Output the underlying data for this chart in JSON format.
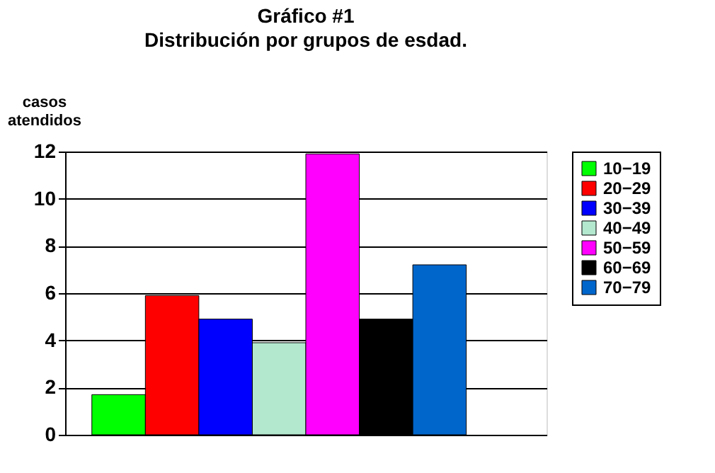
{
  "chart_data": {
    "type": "bar",
    "title": "Gráfico #1",
    "subtitle": "Distribución por grupos de esdad.",
    "ylabel": "casos atendidos",
    "categories": [
      null
    ],
    "series": [
      {
        "name": "10−19",
        "color": "#00ff00",
        "values": [
          1.7
        ]
      },
      {
        "name": "20−29",
        "color": "#ff0000",
        "values": [
          5.9
        ]
      },
      {
        "name": "30−39",
        "color": "#0000ff",
        "values": [
          4.9
        ]
      },
      {
        "name": "40−49",
        "color": "#b3e8cf",
        "values": [
          3.9
        ]
      },
      {
        "name": "50−59",
        "color": "#ff00ff",
        "values": [
          11.9
        ]
      },
      {
        "name": "60−69",
        "color": "#000000",
        "values": [
          4.9
        ]
      },
      {
        "name": "70−79",
        "color": "#0066cc",
        "values": [
          7.2
        ]
      }
    ],
    "ylim": [
      0,
      12
    ],
    "yticks": [
      0,
      2,
      4,
      6,
      8,
      10,
      12
    ],
    "grid": "y",
    "legend": "right"
  }
}
